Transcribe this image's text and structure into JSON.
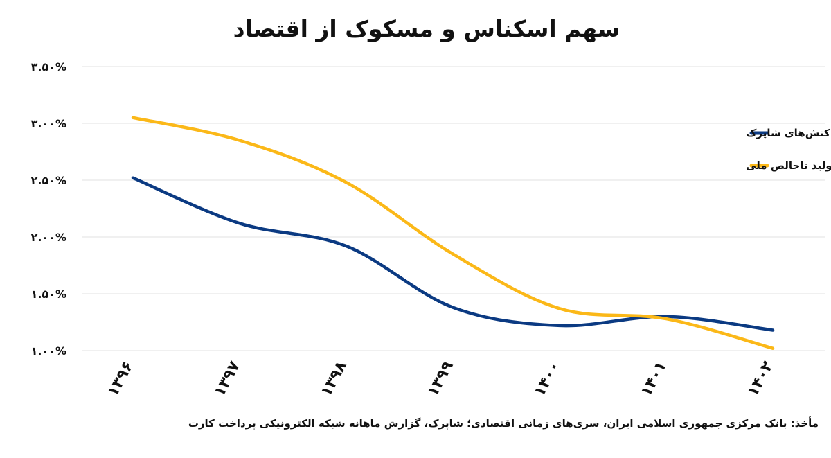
{
  "chart_data": {
    "type": "line",
    "title": "سهم اسکناس و مسکوک از اقتصاد",
    "categories": [
      "۱۳۹۶",
      "۱۳۹۷",
      "۱۳۹۸",
      "۱۳۹۹",
      "۱۴۰۰",
      "۱۴۰۱",
      "۱۴۰۲"
    ],
    "yticks": [
      "۳.۵۰%",
      "۳.۰۰%",
      "۲.۵۰%",
      "۲.۰۰%",
      "۱.۵۰%",
      "۱.۰۰%"
    ],
    "ylim": [
      1.0,
      3.5
    ],
    "grid": true,
    "legend_position": "top-right",
    "series": [
      {
        "name": "نسبت اسکناس و مسکوک در دست اشخاص به حجم تراکنش‌های شاپرک",
        "color": "#0b3a82",
        "values": [
          2.52,
          2.12,
          1.92,
          1.38,
          1.22,
          1.3,
          1.18
        ]
      },
      {
        "name": "نسبت اسکناس و مسکوک در جریان به تولید ناخالص ملی",
        "color": "#fbb818",
        "values": [
          3.05,
          2.85,
          2.48,
          1.85,
          1.37,
          1.28,
          1.02
        ]
      }
    ]
  },
  "source_note": "مأخذ: بانک مرکزی جمهوری اسلامی ایران، سری‌های زمانی اقتصادی؛ شاپرک، گزارش ماهانه شبکه الکترونیکی پرداخت کارت"
}
